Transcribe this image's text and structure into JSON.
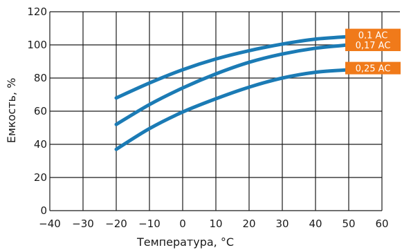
{
  "chart_data": {
    "type": "line",
    "title": "",
    "xlabel": "Температура, °C",
    "ylabel": "Емкость, %",
    "xlim": [
      -40,
      60
    ],
    "ylim": [
      0,
      120
    ],
    "x_ticks": [
      -40,
      -30,
      -20,
      -10,
      0,
      10,
      20,
      30,
      40,
      50,
      60
    ],
    "x_tick_labels": [
      "−40",
      "−30",
      "−20",
      "−10",
      "0",
      "10",
      "20",
      "30",
      "40",
      "50",
      "60"
    ],
    "y_ticks": [
      0,
      20,
      40,
      60,
      80,
      100,
      120
    ],
    "y_tick_labels": [
      "0",
      "20",
      "40",
      "60",
      "80",
      "100",
      "120"
    ],
    "grid": true,
    "line_color": "#1b7bb5",
    "extension_color": "#e21f26",
    "badge_color": "#f07a1a",
    "series": [
      {
        "name": "0,1 AC",
        "x": [
          -20,
          -10,
          0,
          10,
          20,
          30,
          40,
          50
        ],
        "values": [
          68,
          77,
          85,
          91.5,
          96.5,
          100.5,
          103.5,
          105
        ],
        "extension": {
          "x": [
            50,
            60
          ],
          "values": [
            105,
            106
          ]
        }
      },
      {
        "name": "0,17 AC",
        "x": [
          -20,
          -10,
          0,
          10,
          20,
          30,
          40,
          50
        ],
        "values": [
          52,
          64,
          74,
          82.5,
          89.5,
          94.5,
          98,
          100
        ],
        "extension": {
          "x": [
            50,
            60
          ],
          "values": [
            100,
            100
          ]
        }
      },
      {
        "name": "0,25 AC",
        "x": [
          -20,
          -10,
          0,
          10,
          20,
          30,
          40,
          50
        ],
        "values": [
          37,
          49.5,
          59.5,
          67.5,
          74.5,
          80,
          83.5,
          85
        ],
        "extension": {
          "x": [
            50,
            60
          ],
          "values": [
            85,
            86
          ]
        }
      }
    ]
  }
}
